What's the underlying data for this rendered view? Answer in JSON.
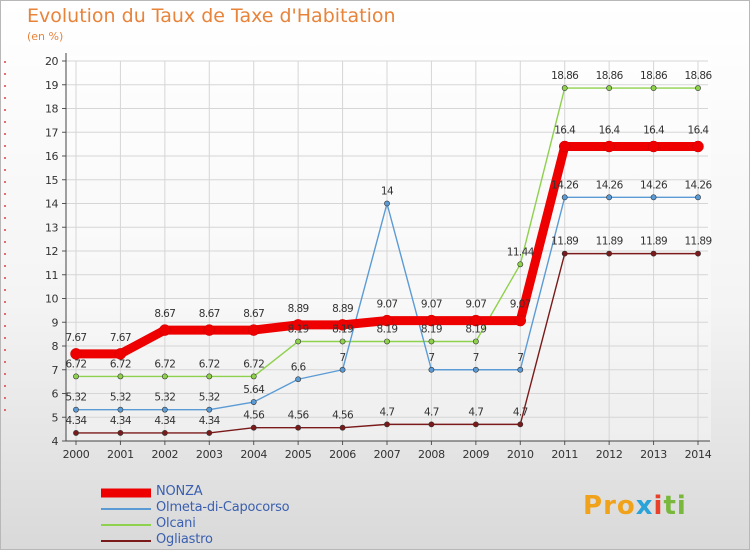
{
  "title": "Evolution du Taux de Taxe d'Habitation",
  "unit": "(en %)",
  "logo": {
    "letters": [
      "P",
      "r",
      "o",
      "x",
      "i",
      "t",
      "i"
    ],
    "colors": [
      "#f0a21a",
      "#f0a21a",
      "#f0a21a",
      "#2aa3d9",
      "#e8402a",
      "#79b83d",
      "#79b83d"
    ]
  },
  "chart_data": {
    "type": "line",
    "x": [
      "2000",
      "2001",
      "2002",
      "2003",
      "2004",
      "2005",
      "2006",
      "2007",
      "2008",
      "2009",
      "2010",
      "2011",
      "2012",
      "2013",
      "2014"
    ],
    "ylim": [
      4,
      20
    ],
    "yticks": [
      "4",
      "5",
      "6",
      "7",
      "8",
      "9",
      "10",
      "11",
      "12",
      "13",
      "14",
      "15",
      "16",
      "17",
      "18",
      "19",
      "20"
    ],
    "grid": true,
    "legend_position": "bottom-left",
    "series": [
      {
        "name": "NONZA",
        "color": "#ee0000",
        "width": 9,
        "marker": 5.5,
        "values": [
          7.67,
          7.67,
          8.67,
          8.67,
          8.67,
          8.89,
          8.89,
          9.07,
          9.07,
          9.07,
          9.07,
          16.4,
          16.4,
          16.4,
          16.4
        ],
        "labels": [
          "7.67",
          "7.67",
          "8.67",
          "8.67",
          "8.67",
          "8.89",
          "8.89",
          "9.07",
          "9.07",
          "9.07",
          "9.07",
          "16.4",
          "16.4",
          "16.4",
          "16.4"
        ]
      },
      {
        "name": "Olmeta-di-Capocorso",
        "color": "#5b9bd5",
        "width": 1.4,
        "marker": 2.6,
        "values": [
          5.32,
          5.32,
          5.32,
          5.32,
          5.64,
          6.6,
          7,
          14,
          7,
          7,
          7,
          14.26,
          14.26,
          14.26,
          14.26
        ],
        "labels": [
          "5.32",
          "5.32",
          "5.32",
          "5.32",
          "5.64",
          "6.6",
          "7",
          "14",
          "7",
          "7",
          "7",
          "14.26",
          "14.26",
          "14.26",
          "14.26"
        ]
      },
      {
        "name": "Olcani",
        "color": "#8ed14c",
        "width": 1.4,
        "marker": 2.6,
        "values": [
          6.72,
          6.72,
          6.72,
          6.72,
          6.72,
          8.19,
          8.19,
          8.19,
          8.19,
          8.19,
          11.44,
          18.86,
          18.86,
          18.86,
          18.86
        ],
        "labels": [
          "6.72",
          "6.72",
          "6.72",
          "6.72",
          "6.72",
          "8.19",
          "8.19",
          "8.19",
          "8.19",
          "8.19",
          "11.44",
          "18.86",
          "18.86",
          "18.86",
          "18.86"
        ]
      },
      {
        "name": "Ogliastro",
        "color": "#7a1a1a",
        "width": 1.4,
        "marker": 2.6,
        "values": [
          4.34,
          4.34,
          4.34,
          4.34,
          4.56,
          4.56,
          4.56,
          4.7,
          4.7,
          4.7,
          4.7,
          11.89,
          11.89,
          11.89,
          11.89
        ],
        "labels": [
          "4.34",
          "4.34",
          "4.34",
          "4.34",
          "4.56",
          "4.56",
          "4.56",
          "4.7",
          "4.7",
          "4.7",
          "4.7",
          "11.89",
          "11.89",
          "11.89",
          "11.89"
        ]
      }
    ]
  }
}
